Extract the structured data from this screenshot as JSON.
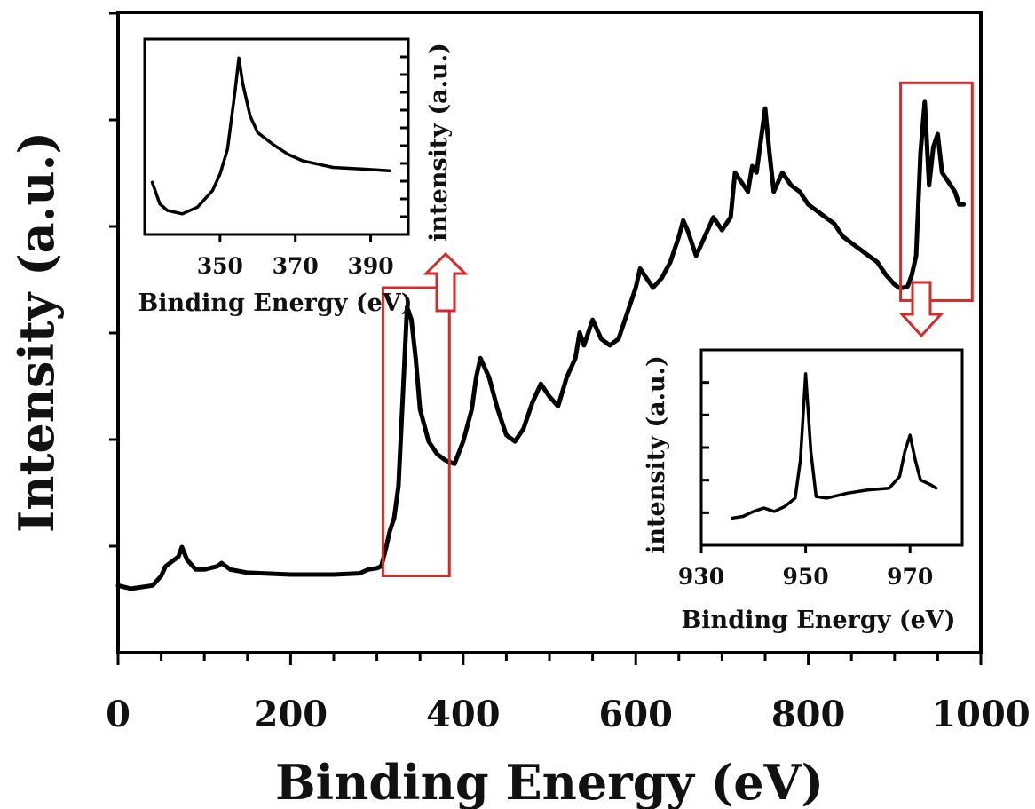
{
  "chart_data": [
    {
      "type": "line",
      "xlabel": "Binding Energy (eV)",
      "ylabel": "Intensity (a.u.)",
      "xlim": [
        0,
        1000
      ],
      "ylim": [
        0,
        10
      ],
      "x_ticks": [
        0,
        200,
        400,
        600,
        800,
        1000
      ],
      "grid": false,
      "series": [
        {
          "x": [
            0,
            15,
            40,
            50,
            55,
            60,
            70,
            74,
            80,
            90,
            100,
            115,
            120,
            130,
            150,
            200,
            250,
            280,
            290,
            300,
            305,
            310,
            315,
            320,
            325,
            330,
            335,
            340,
            345,
            350,
            360,
            370,
            380,
            390,
            400,
            410,
            415,
            420,
            430,
            440,
            450,
            460,
            470,
            480,
            490,
            500,
            510,
            520,
            530,
            535,
            540,
            550,
            560,
            570,
            580,
            590,
            600,
            605,
            610,
            620,
            630,
            640,
            650,
            655,
            660,
            670,
            680,
            690,
            700,
            710,
            715,
            720,
            730,
            735,
            740,
            745,
            750,
            755,
            760,
            770,
            780,
            790,
            800,
            810,
            820,
            830,
            840,
            850,
            860,
            870,
            880,
            890,
            900,
            905,
            910,
            915,
            920,
            925,
            930,
            935,
            940,
            945,
            950,
            955,
            960,
            965,
            970,
            975,
            980
          ],
          "y": [
            1.05,
            1.0,
            1.05,
            1.2,
            1.35,
            1.4,
            1.5,
            1.65,
            1.45,
            1.3,
            1.3,
            1.35,
            1.4,
            1.3,
            1.25,
            1.22,
            1.22,
            1.24,
            1.3,
            1.32,
            1.35,
            1.6,
            1.9,
            2.1,
            2.6,
            4.0,
            5.4,
            5.2,
            4.6,
            3.8,
            3.3,
            3.1,
            3.0,
            2.95,
            3.3,
            3.8,
            4.3,
            4.6,
            4.3,
            3.8,
            3.4,
            3.3,
            3.5,
            3.9,
            4.2,
            4.0,
            3.85,
            4.3,
            4.6,
            5.0,
            4.8,
            5.2,
            4.9,
            4.8,
            4.9,
            5.3,
            5.7,
            6.0,
            5.9,
            5.7,
            5.85,
            6.1,
            6.5,
            6.75,
            6.6,
            6.2,
            6.5,
            6.8,
            6.6,
            6.8,
            7.5,
            7.4,
            7.2,
            7.6,
            7.5,
            8.0,
            8.5,
            7.8,
            7.2,
            7.5,
            7.3,
            7.2,
            7.0,
            6.9,
            6.8,
            6.7,
            6.5,
            6.4,
            6.3,
            6.2,
            6.1,
            5.9,
            5.75,
            5.7,
            5.7,
            5.72,
            5.9,
            6.2,
            7.8,
            8.6,
            7.3,
            7.9,
            8.1,
            7.5,
            7.4,
            7.3,
            7.2,
            7.0,
            7.0
          ]
        }
      ],
      "highlight_ranges": [
        {
          "x": [
            307,
            384
          ],
          "y": [
            1.2,
            5.7
          ]
        },
        {
          "x": [
            907,
            990
          ],
          "y": [
            5.5,
            8.9
          ]
        }
      ]
    },
    {
      "type": "line",
      "inset": "top-left",
      "xlabel": "Binding Energy (eV)",
      "ylabel": "intensity (a.u.)",
      "xlim": [
        330,
        400
      ],
      "x_ticks": [
        350,
        370,
        390
      ],
      "series": [
        {
          "x": [
            332,
            334,
            336,
            340,
            344,
            348,
            350,
            352,
            354,
            355,
            356,
            358,
            360,
            364,
            368,
            372,
            376,
            380,
            388,
            395
          ],
          "y": [
            0.25,
            0.12,
            0.08,
            0.06,
            0.1,
            0.2,
            0.3,
            0.45,
            0.8,
            1.0,
            0.85,
            0.65,
            0.55,
            0.48,
            0.42,
            0.38,
            0.36,
            0.34,
            0.33,
            0.32
          ]
        }
      ]
    },
    {
      "type": "line",
      "inset": "bottom-right",
      "xlabel": "Binding Energy (eV)",
      "ylabel": "intensity (a.u.)",
      "xlim": [
        930,
        980
      ],
      "x_ticks": [
        930,
        950,
        970
      ],
      "series": [
        {
          "x": [
            936,
            938,
            940,
            942,
            944,
            946,
            948,
            949,
            950,
            951,
            952,
            954,
            958,
            962,
            966,
            968,
            969,
            970,
            971,
            972,
            974,
            975
          ],
          "y": [
            0.1,
            0.11,
            0.14,
            0.16,
            0.14,
            0.17,
            0.22,
            0.45,
            0.97,
            0.5,
            0.23,
            0.22,
            0.25,
            0.27,
            0.28,
            0.35,
            0.5,
            0.6,
            0.45,
            0.33,
            0.3,
            0.28
          ]
        }
      ]
    }
  ]
}
